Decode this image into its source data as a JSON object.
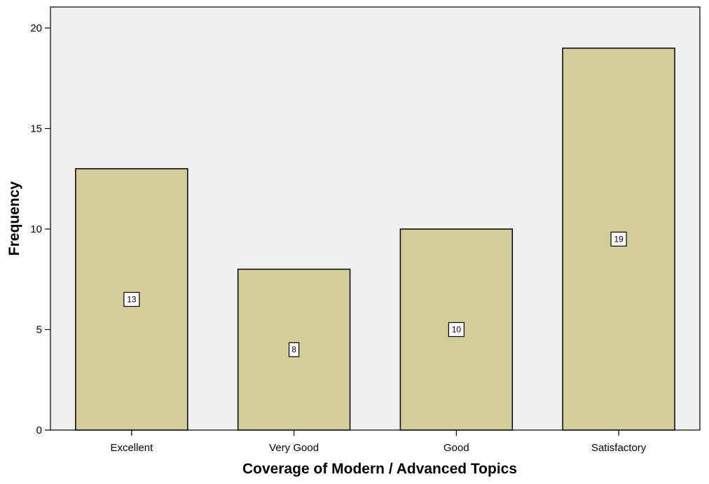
{
  "chart_data": {
    "type": "bar",
    "title": "",
    "xlabel": "Coverage of Modern / Advanced Topics",
    "ylabel": "Frequency",
    "categories": [
      "Excellent",
      "Very Good",
      "Good",
      "Satisfactory"
    ],
    "values": [
      13,
      8,
      10,
      19
    ],
    "data_labels": [
      "13",
      "8",
      "10",
      "19"
    ],
    "ylim": [
      0,
      20
    ],
    "yticks": [
      0,
      5,
      10,
      15,
      20
    ],
    "ytick_labels": [
      "0",
      "5",
      "10",
      "15",
      "20"
    ],
    "grid": false,
    "legend": "none",
    "colors": {
      "bar_fill": "#d3cd99",
      "bar_stroke": "#000000",
      "plot_background": "#f0f0f0"
    }
  }
}
